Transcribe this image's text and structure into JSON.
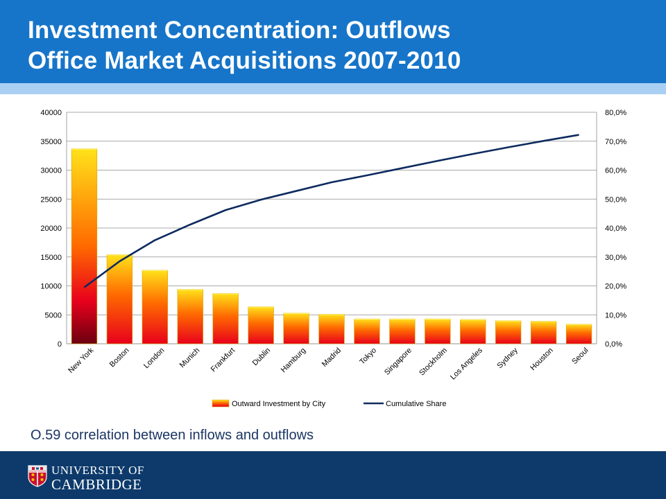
{
  "slide": {
    "title_line1": "Investment Concentration: Outflows",
    "title_line2": "Office Market Acquisitions 2007-2010",
    "caption": "O.59 correlation between inflows and outflows",
    "footer_line1": "UNIVERSITY OF",
    "footer_line2": "CAMBRIDGE",
    "colors": {
      "header": "#1675c9",
      "band": "#a9d0f2",
      "footer": "#0d3a6b",
      "caption": "#1b3563"
    }
  },
  "chart_data": {
    "type": "bar",
    "categories": [
      "New York",
      "Boston",
      "London",
      "Munich",
      "Frankfurt",
      "Dublin",
      "Hamburg",
      "Madrid",
      "Tokyo",
      "Singapore",
      "Stockholm",
      "Los Angeles",
      "Sydney",
      "Houston",
      "Seoul"
    ],
    "series": [
      {
        "name": "Outward Investment by City",
        "type": "bar",
        "axis": "left",
        "values": [
          33700,
          15400,
          12700,
          9400,
          8700,
          6400,
          5300,
          5100,
          4300,
          4300,
          4300,
          4200,
          4000,
          3900,
          3400
        ]
      },
      {
        "name": "Cumulative Share",
        "type": "line",
        "axis": "right",
        "values": [
          19.5,
          28.5,
          35.8,
          41.2,
          46.2,
          49.8,
          52.8,
          55.8,
          58.2,
          60.7,
          63.2,
          65.6,
          67.9,
          70.1,
          72.2
        ]
      }
    ],
    "y_left": {
      "min": 0,
      "max": 40000,
      "ticks": [
        "0",
        "5000",
        "10000",
        "15000",
        "20000",
        "25000",
        "30000",
        "35000",
        "40000"
      ]
    },
    "y_right": {
      "min": 0,
      "max": 80,
      "ticks": [
        "0,0%",
        "10,0%",
        "20,0%",
        "30,0%",
        "40,0%",
        "50,0%",
        "60,0%",
        "70,0%",
        "80,0%"
      ]
    },
    "grid": true,
    "legend": "bottom",
    "colors": {
      "bar_top": "#ffe21a",
      "bar_mid": "#ff6a00",
      "bar_bottom": "#e8001c",
      "line": "#0d2a5e"
    }
  }
}
